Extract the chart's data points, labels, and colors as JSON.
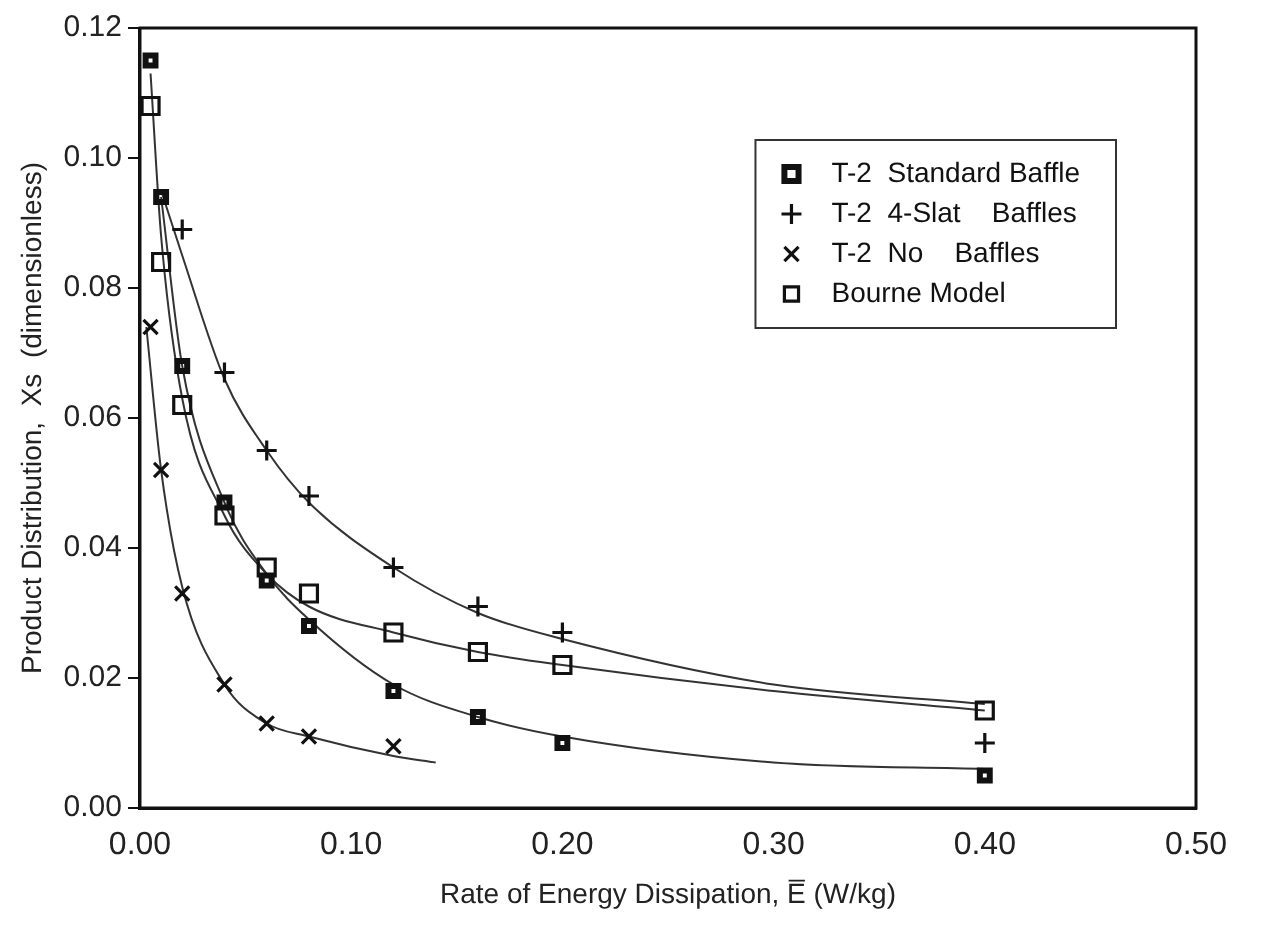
{
  "chart_data": {
    "type": "scatter",
    "xlabel": "Rate of Energy Dissipation, E̅ (W/kg)",
    "ylabel": "Product Distribution,  Xs  (dimensionless)",
    "xlim": [
      0,
      0.5
    ],
    "xticks": [
      {
        "value": 0,
        "label": "0.00"
      },
      {
        "value": 0.1,
        "label": "0.10"
      },
      {
        "value": 0.2,
        "label": "0.20"
      },
      {
        "value": 0.3,
        "label": "0.30"
      },
      {
        "value": 0.4,
        "label": "0.40"
      },
      {
        "value": 0.5,
        "label": "0.50"
      }
    ],
    "ylim": [
      0,
      0.12
    ],
    "yticks": [
      {
        "value": 0,
        "label": "0.00"
      },
      {
        "value": 0.02,
        "label": "0.02"
      },
      {
        "value": 0.04,
        "label": "0.04"
      },
      {
        "value": 0.06,
        "label": "0.06"
      },
      {
        "value": 0.08,
        "label": "0.08"
      },
      {
        "value": 0.1,
        "label": "0.10"
      },
      {
        "value": 0.12,
        "label": "0.12"
      }
    ],
    "grid": false,
    "legend": "top right",
    "series": [
      {
        "name": "T-2  Standard Baffle",
        "color": "#111111",
        "marker": "square",
        "x": [
          0.005,
          0.01,
          0.02,
          0.04,
          0.06,
          0.08,
          0.12,
          0.16,
          0.2,
          0.4
        ],
        "values": [
          0.115,
          0.094,
          0.068,
          0.047,
          0.035,
          0.028,
          0.018,
          0.014,
          0.01,
          0.005
        ]
      },
      {
        "name": "T-2  4-Slat    Baffles",
        "color": "#111111",
        "marker": "plus",
        "x": [
          0.02,
          0.04,
          0.06,
          0.08,
          0.12,
          0.16,
          0.2,
          0.4
        ],
        "values": [
          0.089,
          0.067,
          0.055,
          0.048,
          0.037,
          0.031,
          0.027,
          0.01
        ]
      },
      {
        "name": "T-2  No    Baffles",
        "color": "#111111",
        "marker": "cross",
        "x": [
          0.005,
          0.01,
          0.02,
          0.04,
          0.06,
          0.08,
          0.12
        ],
        "values": [
          0.074,
          0.052,
          0.033,
          0.019,
          0.013,
          0.011,
          0.0095
        ]
      },
      {
        "name": "Bourne Model",
        "color": "#111111",
        "marker": "square",
        "x": [
          0.005,
          0.01,
          0.02,
          0.04,
          0.06,
          0.08,
          0.12,
          0.16,
          0.2,
          0.4
        ],
        "values": [
          0.108,
          0.084,
          0.062,
          0.045,
          0.037,
          0.033,
          0.027,
          0.024,
          0.022,
          0.015
        ]
      },
      {
        "type": "line",
        "color": "#333333",
        "marker": "none",
        "x": [
          0.01,
          0.02,
          0.04,
          0.06,
          0.08,
          0.12,
          0.16,
          0.2,
          0.3,
          0.4
        ],
        "values": [
          0.095,
          0.085,
          0.066,
          0.055,
          0.047,
          0.037,
          0.03,
          0.026,
          0.019,
          0.016
        ]
      },
      {
        "type": "line",
        "color": "#333333",
        "marker": "none",
        "x": [
          0.005,
          0.01,
          0.02,
          0.04,
          0.06,
          0.08,
          0.12,
          0.16,
          0.2,
          0.3,
          0.4
        ],
        "values": [
          0.113,
          0.088,
          0.063,
          0.045,
          0.036,
          0.031,
          0.027,
          0.024,
          0.022,
          0.018,
          0.015
        ]
      },
      {
        "type": "line",
        "color": "#333333",
        "marker": "none",
        "x": [
          0.01,
          0.02,
          0.04,
          0.06,
          0.08,
          0.12,
          0.16,
          0.2,
          0.3,
          0.4
        ],
        "values": [
          0.094,
          0.068,
          0.047,
          0.036,
          0.029,
          0.019,
          0.014,
          0.011,
          0.007,
          0.006
        ]
      },
      {
        "type": "line",
        "color": "#333333",
        "marker": "none",
        "x": [
          0.003,
          0.01,
          0.02,
          0.04,
          0.06,
          0.08,
          0.12,
          0.14
        ],
        "values": [
          0.074,
          0.052,
          0.034,
          0.019,
          0.013,
          0.011,
          0.008,
          0.007
        ]
      }
    ]
  }
}
